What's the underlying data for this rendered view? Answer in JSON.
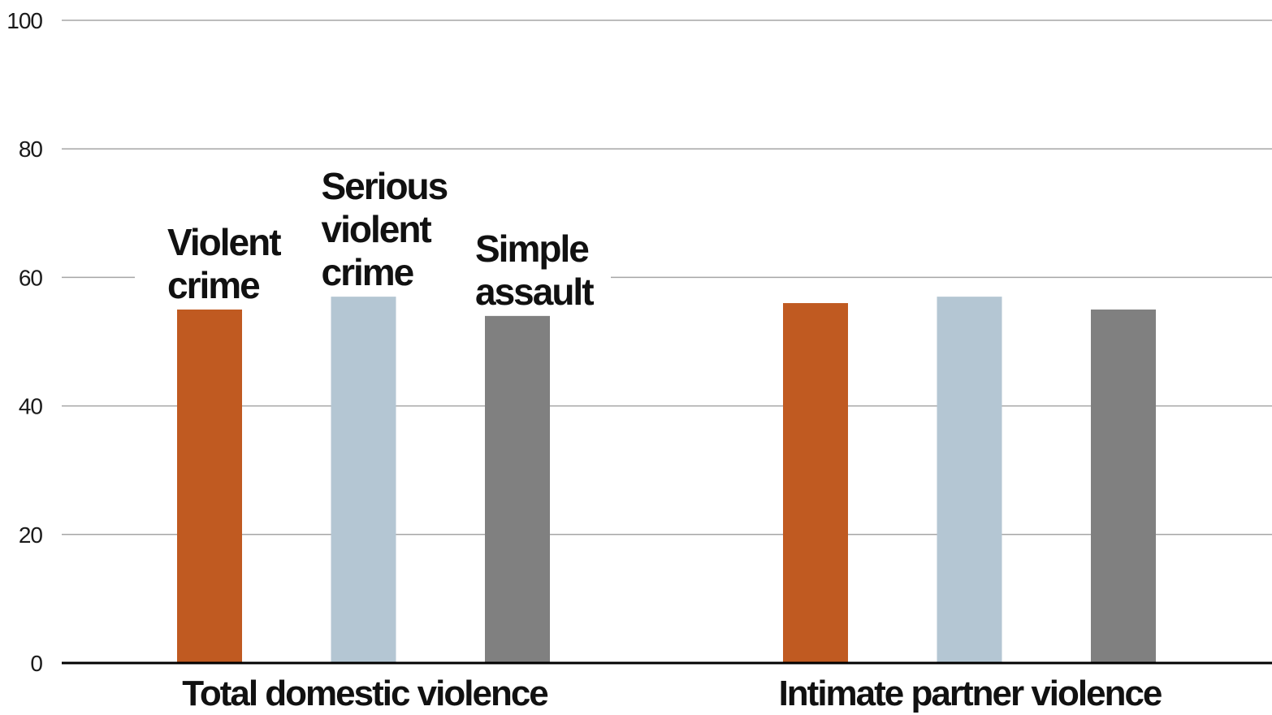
{
  "chart_data": {
    "type": "bar",
    "categories": [
      "Total domestic violence",
      "Intimate partner violence"
    ],
    "series": [
      {
        "name": "Violent crime",
        "label_lines": [
          "Violent",
          "crime"
        ],
        "color": "#c05a21",
        "values": [
          55,
          56
        ]
      },
      {
        "name": "Serious violent crime",
        "label_lines": [
          "Serious",
          "violent",
          "crime"
        ],
        "color": "#b4c6d3",
        "values": [
          57,
          57
        ]
      },
      {
        "name": "Simple assault",
        "label_lines": [
          "Simple",
          "assault"
        ],
        "color": "#808080",
        "values": [
          54,
          55
        ]
      }
    ],
    "yticks": [
      "0",
      "20",
      "40",
      "60",
      "80",
      "100"
    ],
    "ylim": [
      0,
      100
    ],
    "grid": true,
    "gridline_color": "#a6a6a6",
    "axis_color": "#000000",
    "legend": "inline-above-first-group"
  }
}
